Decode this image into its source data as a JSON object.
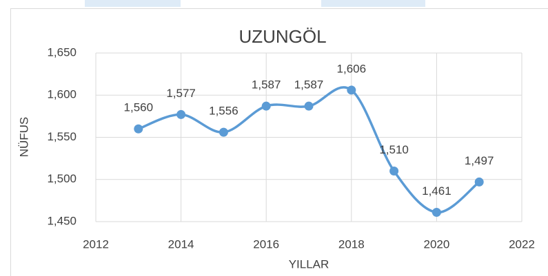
{
  "chart_data": {
    "type": "line",
    "title": "UZUNGÖL",
    "x_label": "YILLAR",
    "y_label": "NÜFUS",
    "x": [
      2013,
      2014,
      2015,
      2016,
      2017,
      2018,
      2019,
      2020,
      2021
    ],
    "series": [
      {
        "name": "NÜFUS",
        "color": "#5b9bd5",
        "values": [
          1560,
          1577,
          1556,
          1587,
          1587,
          1606,
          1510,
          1461,
          1497
        ],
        "value_labels": [
          "1,560",
          "1,577",
          "1,556",
          "1,587",
          "1,587",
          "1,606",
          "1,510",
          "1,461",
          "1,497"
        ]
      }
    ],
    "xlim": [
      2012,
      2022
    ],
    "xticks": [
      2012,
      2014,
      2016,
      2018,
      2020,
      2022
    ],
    "ylim": [
      1450,
      1650
    ],
    "yticks": [
      {
        "value": 1450,
        "label": "1,450"
      },
      {
        "value": 1500,
        "label": "1,500"
      },
      {
        "value": 1550,
        "label": "1,550"
      },
      {
        "value": 1600,
        "label": "1,600"
      },
      {
        "value": 1650,
        "label": "1,650"
      }
    ],
    "grid": true,
    "smooth": true
  }
}
